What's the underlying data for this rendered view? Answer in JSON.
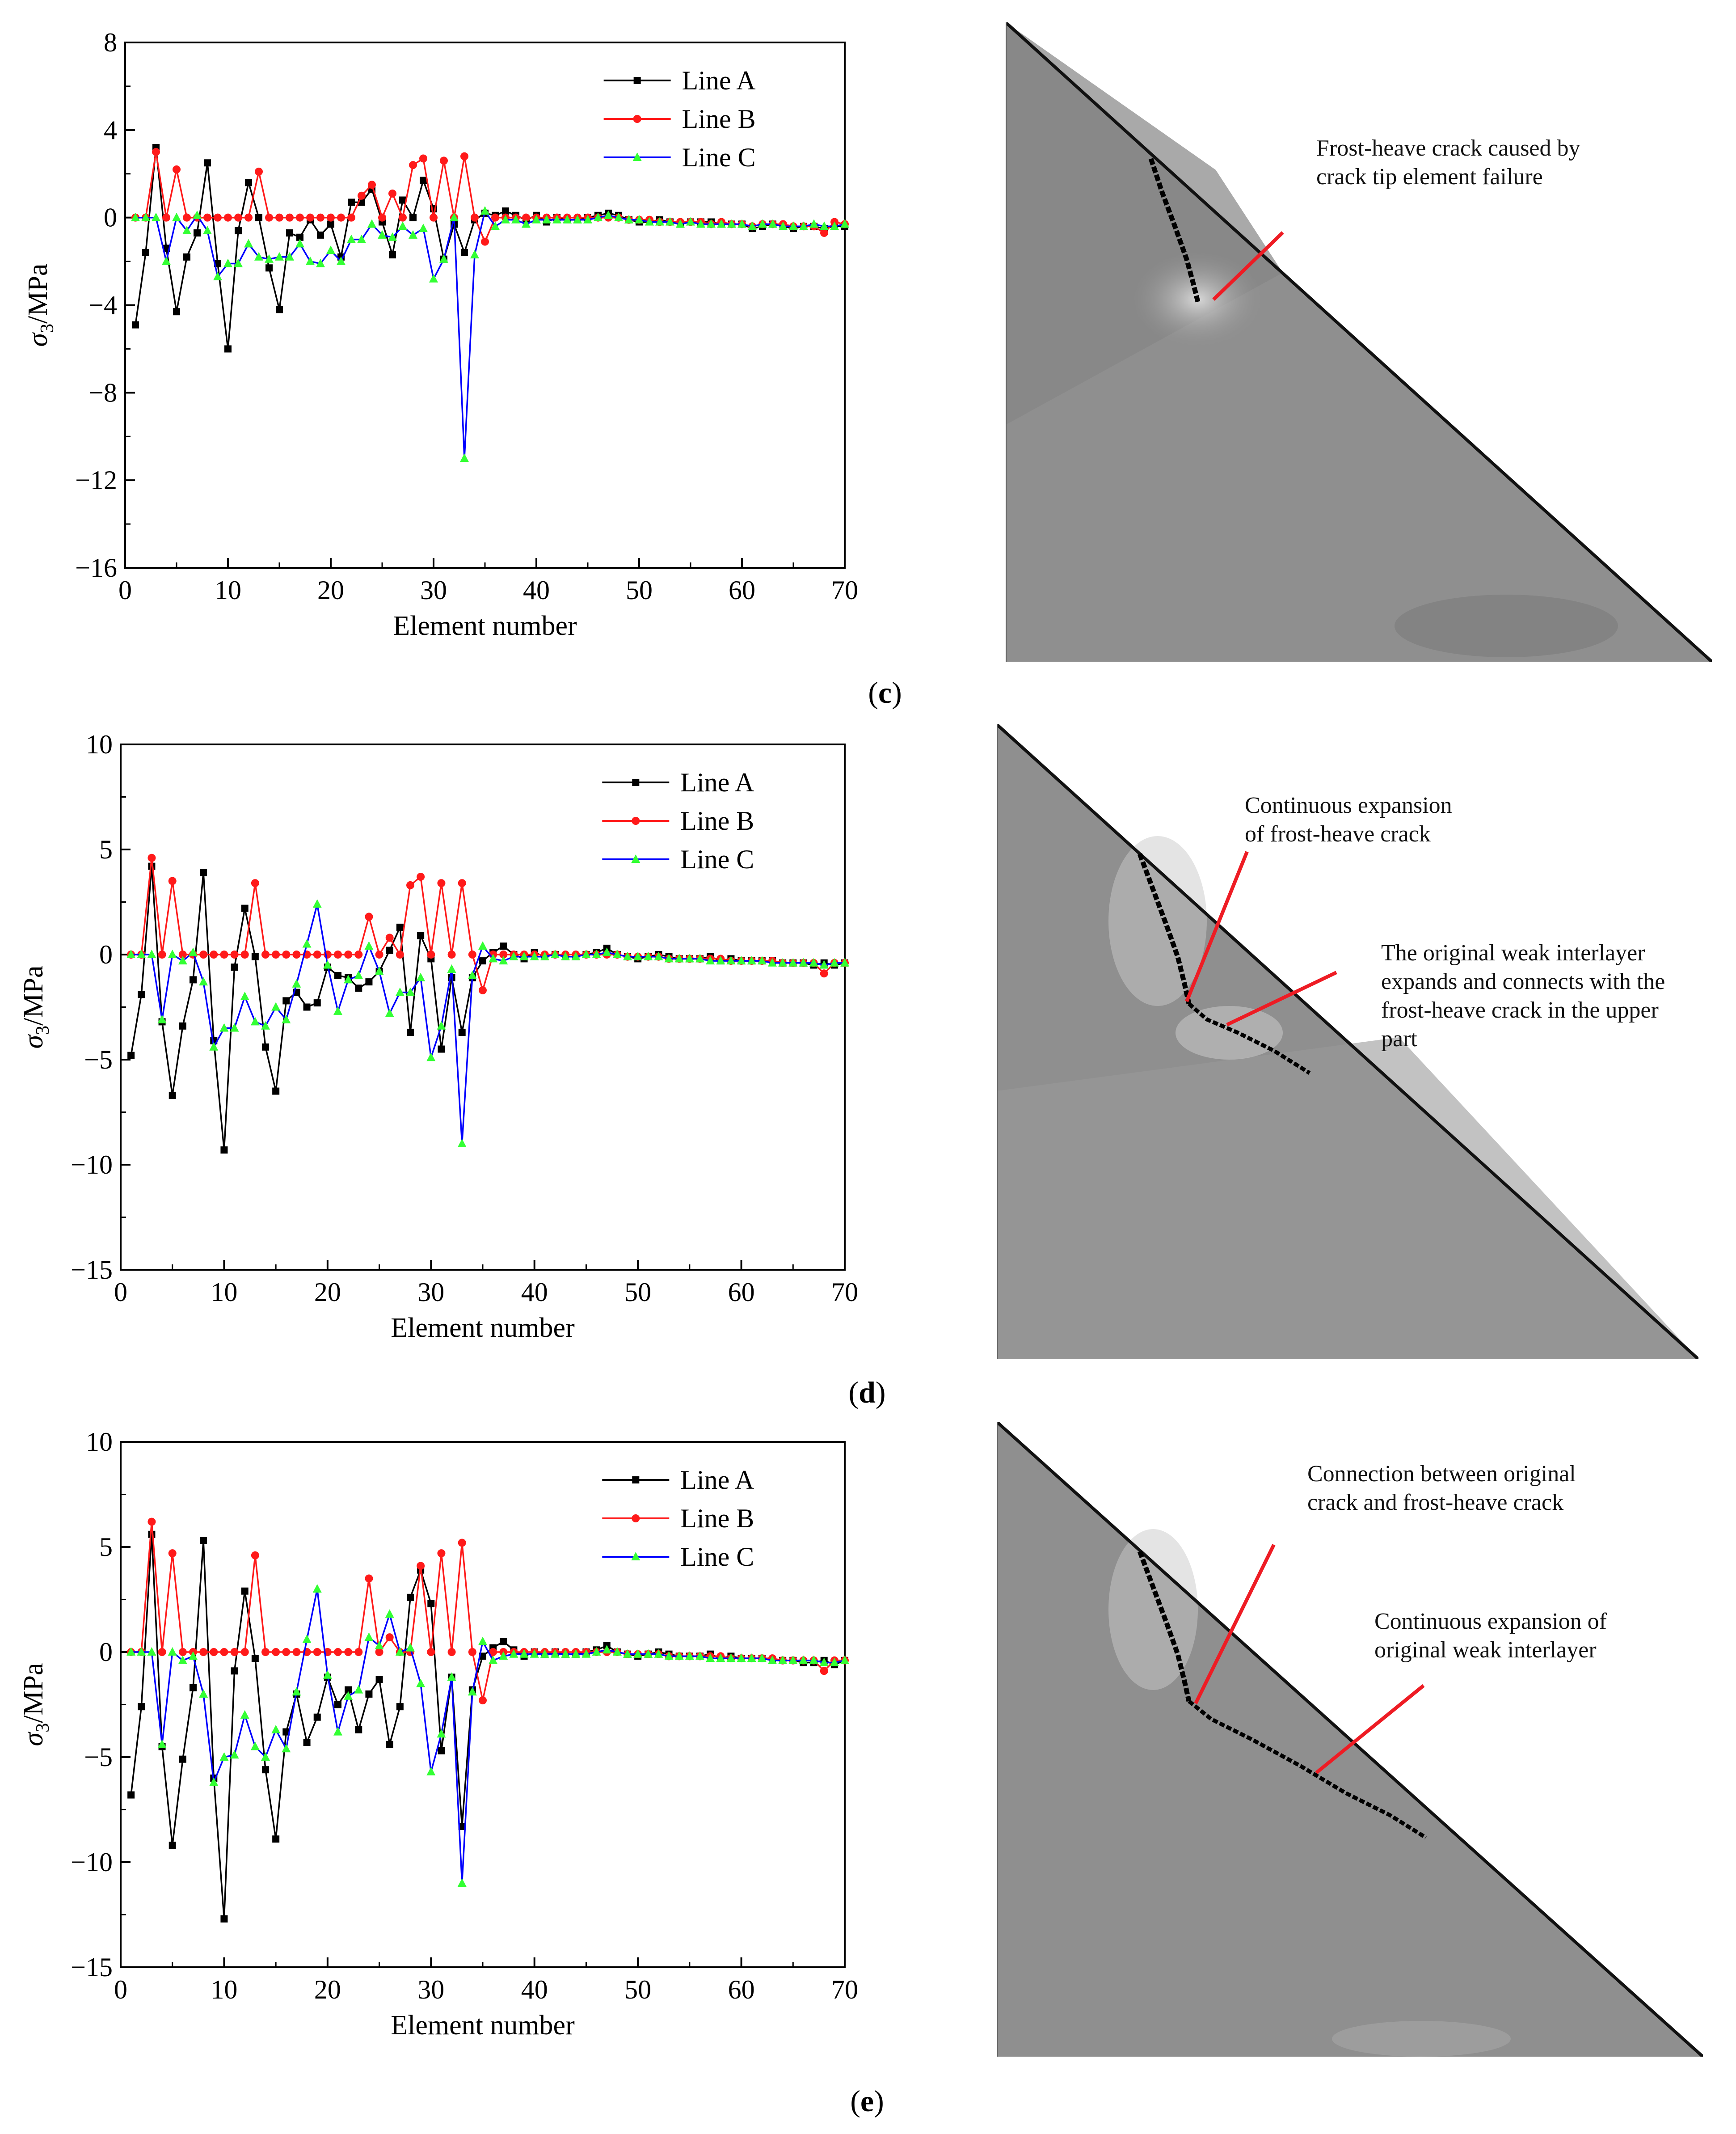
{
  "colors": {
    "line_a": "#000000",
    "line_b": "#ff1a1a",
    "line_c": "#0000ff",
    "line_c_marker": "#33ff33",
    "arrow": "#ee1c24"
  },
  "panels": [
    {
      "label_open": "(",
      "label_letter": "c",
      "label_close": ")",
      "annotations": [
        {
          "lines": [
            "Frost-heave crack caused by",
            "crack tip element failure"
          ]
        }
      ]
    },
    {
      "label_open": "(",
      "label_letter": "d",
      "label_close": ")",
      "annotations": [
        {
          "lines": [
            "Continuous expansion",
            "of frost-heave crack"
          ]
        },
        {
          "lines": [
            "The original weak interlayer",
            "expands and connects with the",
            "frost-heave crack in the upper",
            "part"
          ]
        }
      ]
    },
    {
      "label_open": "(",
      "label_letter": "e",
      "label_close": ")",
      "annotations": [
        {
          "lines": [
            "Connection between original",
            "crack and frost-heave crack"
          ]
        },
        {
          "lines": [
            "Continuous expansion of",
            "original weak interlayer"
          ]
        }
      ]
    }
  ],
  "chart_data": [
    {
      "type": "line",
      "panel": "c",
      "xlabel": "Element number",
      "ylabel_symbol": "σ",
      "ylabel_sub": "3",
      "ylabel_unit": "/MPa",
      "xlim": [
        0,
        70
      ],
      "ylim": [
        -16,
        8
      ],
      "xticks": [
        0,
        10,
        20,
        30,
        40,
        50,
        60,
        70
      ],
      "yticks": [
        -16,
        -12,
        -8,
        -4,
        0,
        4,
        8
      ],
      "legend_position": "top-right",
      "series": [
        {
          "name": "Line A",
          "values": [
            -4.9,
            -1.6,
            3.2,
            -1.4,
            -4.3,
            -1.8,
            -0.7,
            2.5,
            -2.1,
            -6.0,
            -0.6,
            1.6,
            0.0,
            -2.3,
            -4.2,
            -0.7,
            -0.9,
            -0.1,
            -0.8,
            -0.3,
            -1.8,
            0.7,
            0.7,
            1.3,
            -0.2,
            -1.7,
            0.8,
            0.0,
            1.7,
            0.4,
            -1.9,
            -0.3,
            -1.6,
            -0.1,
            0.2,
            0.1,
            0.3,
            0.1,
            -0.1,
            0.1,
            -0.2,
            0.0,
            -0.1,
            -0.1,
            0.0,
            0.1,
            0.2,
            0.1,
            -0.1,
            -0.2,
            -0.2,
            -0.1,
            -0.2,
            -0.3,
            -0.2,
            -0.2,
            -0.2,
            -0.3,
            -0.3,
            -0.3,
            -0.5,
            -0.4,
            -0.3,
            -0.4,
            -0.5,
            -0.4,
            -0.4,
            -0.5,
            -0.4,
            -0.4
          ]
        },
        {
          "name": "Line B",
          "values": [
            0,
            0,
            3.0,
            0,
            2.2,
            0,
            0,
            0,
            0,
            0,
            0,
            0,
            2.1,
            0,
            0,
            0,
            0,
            0,
            0,
            0,
            0,
            0,
            1.0,
            1.5,
            0,
            1.1,
            0,
            2.4,
            2.7,
            0,
            2.6,
            0,
            2.8,
            0,
            -1.1,
            0,
            0,
            0,
            0,
            0,
            0,
            0,
            0,
            0,
            0,
            0,
            0,
            0,
            -0.1,
            -0.1,
            -0.1,
            -0.2,
            -0.2,
            -0.2,
            -0.2,
            -0.2,
            -0.3,
            -0.2,
            -0.3,
            -0.3,
            -0.4,
            -0.3,
            -0.3,
            -0.3,
            -0.4,
            -0.4,
            -0.4,
            -0.7,
            -0.2,
            -0.3
          ]
        },
        {
          "name": "Line C",
          "values": [
            0,
            0,
            0,
            -2.0,
            0,
            -0.6,
            0.1,
            -0.6,
            -2.7,
            -2.1,
            -2.1,
            -1.2,
            -1.8,
            -1.9,
            -1.8,
            -1.8,
            -1.2,
            -2.0,
            -2.1,
            -1.5,
            -2.0,
            -1.0,
            -1.0,
            -0.3,
            -0.8,
            -0.9,
            -0.4,
            -0.8,
            -0.5,
            -2.8,
            -1.9,
            0,
            -11.0,
            -1.7,
            0.3,
            -0.4,
            -0.1,
            -0.1,
            -0.3,
            -0.1,
            -0.1,
            -0.1,
            -0.1,
            -0.1,
            -0.1,
            0.0,
            0.1,
            0.0,
            -0.1,
            -0.1,
            -0.2,
            -0.2,
            -0.2,
            -0.3,
            -0.2,
            -0.3,
            -0.3,
            -0.3,
            -0.3,
            -0.3,
            -0.4,
            -0.3,
            -0.3,
            -0.4,
            -0.4,
            -0.4,
            -0.3,
            -0.4,
            -0.4,
            -0.3
          ]
        }
      ]
    },
    {
      "type": "line",
      "panel": "d",
      "xlabel": "Element number",
      "ylabel_symbol": "σ",
      "ylabel_sub": "3",
      "ylabel_unit": "/MPa",
      "xlim": [
        0,
        70
      ],
      "ylim": [
        -15,
        10
      ],
      "xticks": [
        0,
        10,
        20,
        30,
        40,
        50,
        60,
        70
      ],
      "yticks": [
        -15,
        -10,
        -5,
        0,
        5,
        10
      ],
      "legend_position": "top-right",
      "series": [
        {
          "name": "Line A",
          "values": [
            -4.8,
            -1.9,
            4.2,
            -3.2,
            -6.7,
            -3.4,
            -1.2,
            3.9,
            -4.1,
            -9.3,
            -0.6,
            2.2,
            -0.1,
            -4.4,
            -6.5,
            -2.2,
            -1.8,
            -2.5,
            -2.3,
            -0.6,
            -1.0,
            -1.1,
            -1.6,
            -1.3,
            -0.8,
            0.2,
            1.3,
            -3.7,
            0.9,
            -0.2,
            -4.5,
            -1.1,
            -3.7,
            -1.1,
            -0.3,
            0.1,
            0.4,
            0.0,
            -0.2,
            0.1,
            -0.1,
            0.0,
            -0.1,
            -0.1,
            0.0,
            0.1,
            0.3,
            0.0,
            -0.1,
            -0.2,
            -0.1,
            0.0,
            -0.1,
            -0.2,
            -0.2,
            -0.2,
            -0.1,
            -0.3,
            -0.2,
            -0.3,
            -0.3,
            -0.3,
            -0.3,
            -0.4,
            -0.4,
            -0.4,
            -0.5,
            -0.4,
            -0.5,
            -0.4
          ]
        },
        {
          "name": "Line B",
          "values": [
            0,
            0,
            4.6,
            0,
            3.5,
            0,
            0,
            0,
            0,
            0,
            0,
            0,
            3.4,
            0,
            0,
            0,
            0,
            0,
            0,
            0,
            0,
            0,
            0,
            1.8,
            0,
            0.8,
            0,
            3.3,
            3.7,
            0,
            3.4,
            0,
            3.4,
            0,
            -1.7,
            0,
            0,
            0,
            0,
            0,
            0,
            0,
            0,
            0,
            0,
            0,
            0,
            0,
            -0.1,
            -0.1,
            -0.1,
            -0.1,
            -0.2,
            -0.2,
            -0.2,
            -0.2,
            -0.2,
            -0.2,
            -0.3,
            -0.3,
            -0.3,
            -0.3,
            -0.3,
            -0.4,
            -0.4,
            -0.4,
            -0.4,
            -0.9,
            -0.4,
            -0.4
          ]
        },
        {
          "name": "Line C",
          "values": [
            0,
            0,
            0,
            -3.1,
            0,
            -0.3,
            0.1,
            -1.3,
            -4.4,
            -3.5,
            -3.5,
            -2.0,
            -3.2,
            -3.4,
            -2.5,
            -3.1,
            -1.4,
            0.5,
            2.4,
            -0.5,
            -2.7,
            -1.2,
            -1.0,
            0.4,
            -0.8,
            -2.8,
            -1.8,
            -1.8,
            -1.1,
            -4.9,
            -3.4,
            -0.7,
            -9.0,
            -1.0,
            0.4,
            -0.2,
            -0.3,
            -0.1,
            -0.1,
            -0.1,
            -0.1,
            0.0,
            -0.1,
            -0.1,
            0.0,
            0.0,
            0.1,
            0.0,
            -0.1,
            -0.1,
            -0.1,
            -0.1,
            -0.2,
            -0.2,
            -0.2,
            -0.2,
            -0.3,
            -0.3,
            -0.3,
            -0.3,
            -0.3,
            -0.3,
            -0.4,
            -0.4,
            -0.4,
            -0.4,
            -0.4,
            -0.5,
            -0.4,
            -0.4
          ]
        }
      ]
    },
    {
      "type": "line",
      "panel": "e",
      "xlabel": "Element number",
      "ylabel_symbol": "σ",
      "ylabel_sub": "3",
      "ylabel_unit": "/MPa",
      "xlim": [
        0,
        70
      ],
      "ylim": [
        -15,
        10
      ],
      "xticks": [
        0,
        10,
        20,
        30,
        40,
        50,
        60,
        70
      ],
      "yticks": [
        -15,
        -10,
        -5,
        0,
        5,
        10
      ],
      "legend_position": "top-right",
      "series": [
        {
          "name": "Line A",
          "values": [
            -6.8,
            -2.6,
            5.6,
            -4.5,
            -9.2,
            -5.1,
            -1.7,
            5.3,
            -6.0,
            -12.7,
            -0.9,
            2.9,
            -0.3,
            -5.6,
            -8.9,
            -3.8,
            -2.0,
            -4.3,
            -3.1,
            -1.2,
            -2.5,
            -1.8,
            -3.7,
            -2.0,
            -1.3,
            -4.4,
            -2.6,
            2.6,
            3.9,
            2.3,
            -4.7,
            -1.2,
            -8.3,
            -1.8,
            -0.2,
            0.2,
            0.5,
            0.1,
            -0.2,
            0.0,
            -0.1,
            0.0,
            -0.1,
            -0.1,
            0.0,
            0.1,
            0.3,
            0.0,
            -0.1,
            -0.2,
            -0.1,
            0.0,
            -0.1,
            -0.2,
            -0.2,
            -0.2,
            -0.1,
            -0.3,
            -0.2,
            -0.3,
            -0.3,
            -0.3,
            -0.4,
            -0.4,
            -0.4,
            -0.5,
            -0.5,
            -0.4,
            -0.6,
            -0.4
          ]
        },
        {
          "name": "Line B",
          "values": [
            0,
            0,
            6.2,
            0,
            4.7,
            0,
            0,
            0,
            0,
            0,
            0,
            0,
            4.6,
            0,
            0,
            0,
            0,
            0,
            0,
            0,
            0,
            0,
            0,
            3.5,
            0,
            0.7,
            0,
            0,
            4.1,
            0,
            4.7,
            0,
            5.2,
            0,
            -2.3,
            0,
            0,
            0,
            0,
            0,
            0,
            0,
            0,
            0,
            0,
            0,
            0,
            0,
            -0.1,
            -0.1,
            -0.1,
            -0.1,
            -0.2,
            -0.2,
            -0.2,
            -0.2,
            -0.2,
            -0.2,
            -0.3,
            -0.3,
            -0.3,
            -0.3,
            -0.3,
            -0.4,
            -0.4,
            -0.4,
            -0.4,
            -0.9,
            -0.4,
            -0.4
          ]
        },
        {
          "name": "Line C",
          "values": [
            0,
            0,
            0,
            -4.4,
            0,
            -0.4,
            -0.2,
            -2.0,
            -6.2,
            -5.0,
            -4.9,
            -3.0,
            -4.5,
            -5.0,
            -3.7,
            -4.6,
            -1.9,
            0.6,
            3.0,
            -1.1,
            -3.8,
            -2.1,
            -1.8,
            0.7,
            0.3,
            1.8,
            0.0,
            0.2,
            -1.5,
            -5.7,
            -3.9,
            -1.2,
            -11.0,
            -1.9,
            0.5,
            -0.4,
            -0.2,
            -0.1,
            -0.1,
            -0.1,
            -0.1,
            -0.1,
            -0.1,
            -0.1,
            -0.1,
            0.0,
            0.1,
            0.0,
            -0.1,
            -0.1,
            -0.1,
            -0.1,
            -0.2,
            -0.2,
            -0.2,
            -0.2,
            -0.3,
            -0.3,
            -0.3,
            -0.3,
            -0.3,
            -0.3,
            -0.4,
            -0.4,
            -0.4,
            -0.4,
            -0.4,
            -0.5,
            -0.5,
            -0.4
          ]
        }
      ]
    }
  ]
}
